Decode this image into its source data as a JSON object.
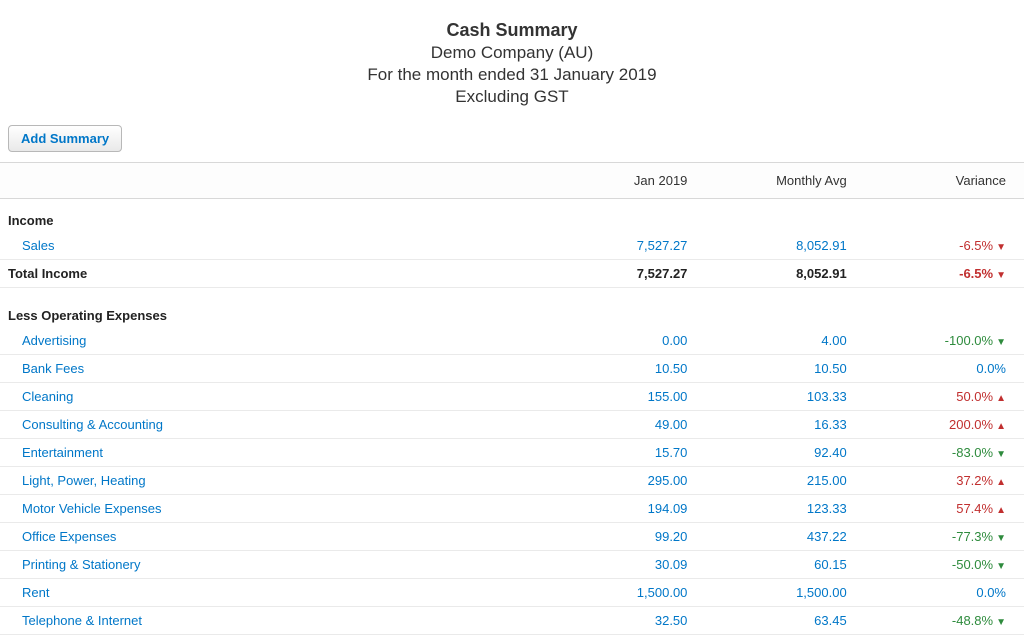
{
  "header": {
    "title": "Cash Summary",
    "company": "Demo Company (AU)",
    "period": "For the month ended 31 January 2019",
    "tax_note": "Excluding GST"
  },
  "buttons": {
    "add_summary": "Add Summary"
  },
  "columns": {
    "period_col": "Jan 2019",
    "avg_col": "Monthly Avg",
    "var_col": "Variance"
  },
  "colors": {
    "link": "#0077c8",
    "variance_red": "#c12f2f",
    "variance_green": "#2e8b3d",
    "border": "#eaeaea"
  },
  "sections": [
    {
      "title": "Income",
      "rows": [
        {
          "label": "Sales",
          "period": "7,527.27",
          "avg": "8,052.91",
          "variance": "-6.5%",
          "var_dir": "down-red"
        }
      ],
      "total": {
        "label": "Total Income",
        "period": "7,527.27",
        "avg": "8,052.91",
        "variance": "-6.5%",
        "var_dir": "down-red"
      }
    },
    {
      "title": "Less Operating Expenses",
      "rows": [
        {
          "label": "Advertising",
          "period": "0.00",
          "avg": "4.00",
          "variance": "-100.0%",
          "var_dir": "down-green"
        },
        {
          "label": "Bank Fees",
          "period": "10.50",
          "avg": "10.50",
          "variance": "0.0%",
          "var_dir": "neutral"
        },
        {
          "label": "Cleaning",
          "period": "155.00",
          "avg": "103.33",
          "variance": "50.0%",
          "var_dir": "up-red"
        },
        {
          "label": "Consulting & Accounting",
          "period": "49.00",
          "avg": "16.33",
          "variance": "200.0%",
          "var_dir": "up-red"
        },
        {
          "label": "Entertainment",
          "period": "15.70",
          "avg": "92.40",
          "variance": "-83.0%",
          "var_dir": "down-green"
        },
        {
          "label": "Light, Power, Heating",
          "period": "295.00",
          "avg": "215.00",
          "variance": "37.2%",
          "var_dir": "up-red"
        },
        {
          "label": "Motor Vehicle Expenses",
          "period": "194.09",
          "avg": "123.33",
          "variance": "57.4%",
          "var_dir": "up-red"
        },
        {
          "label": "Office Expenses",
          "period": "99.20",
          "avg": "437.22",
          "variance": "-77.3%",
          "var_dir": "down-green"
        },
        {
          "label": "Printing & Stationery",
          "period": "30.09",
          "avg": "60.15",
          "variance": "-50.0%",
          "var_dir": "down-green"
        },
        {
          "label": "Rent",
          "period": "1,500.00",
          "avg": "1,500.00",
          "variance": "0.0%",
          "var_dir": "neutral"
        },
        {
          "label": "Telephone & Internet",
          "period": "32.50",
          "avg": "63.45",
          "variance": "-48.8%",
          "var_dir": "down-green"
        }
      ]
    }
  ]
}
